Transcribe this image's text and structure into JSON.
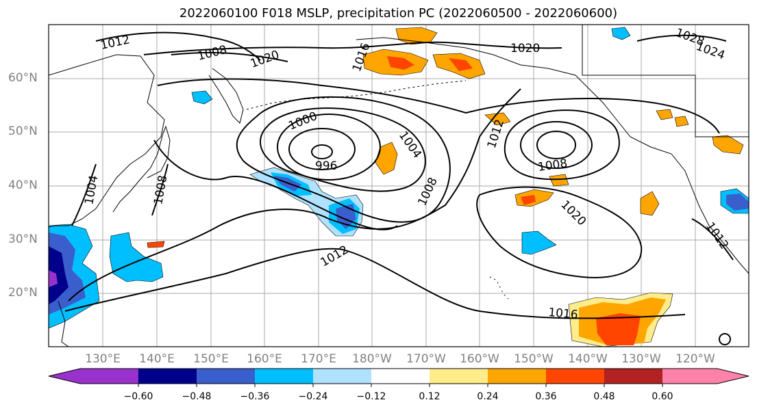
{
  "title": "2022060100 F018 MSLP, precipitation PC (2022060500 - 2022060600)",
  "latitude_labels": [
    "60°N",
    "50°N",
    "40°N",
    "30°N",
    "20°N"
  ],
  "longitude_labels": [
    "130°E",
    "140°E",
    "150°E",
    "160°E",
    "170°E",
    "180°W",
    "170°W",
    "160°W",
    "150°W",
    "140°W",
    "130°W",
    "120°W"
  ],
  "isobar_labels": [
    "1012",
    "1008",
    "1020",
    "1016",
    "1004",
    "1000",
    "996",
    "1024",
    "1028"
  ],
  "colorbar": {
    "colors": [
      "#9932cc",
      "#00008b",
      "#3a5fcd",
      "#00bfff",
      "#b0e2ff",
      "#ffffff",
      "#ffec8b",
      "#ffa500",
      "#ff4500",
      "#b22222",
      "#ff82ab"
    ],
    "tick_labels": [
      "−0.60",
      "−0.48",
      "−0.36",
      "−0.24",
      "−0.12",
      "0.12",
      "0.24",
      "0.36",
      "0.48",
      "0.60"
    ]
  }
}
